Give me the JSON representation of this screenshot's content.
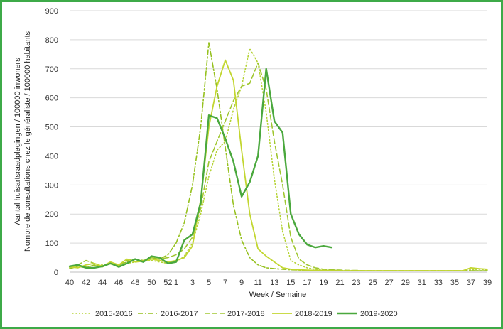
{
  "colors": {
    "frame": "#3daa48",
    "grid": "#d9d9d9",
    "axis": "#bfbfbf"
  },
  "chart_data": {
    "type": "line",
    "title": "",
    "xlabel": "Week / Semaine",
    "ylabel_lines": [
      "Aantal huisartsraadplegingen / 100000 inwoners",
      "Nombre de consultations chez le généraliste / 100000 habitants"
    ],
    "ylim": [
      0,
      900
    ],
    "yticks": [
      0,
      100,
      200,
      300,
      400,
      500,
      600,
      700,
      800,
      900
    ],
    "grid": "horizontal",
    "legend_position": "bottom",
    "weeks": [
      "40",
      "41",
      "42",
      "43",
      "44",
      "45",
      "46",
      "47",
      "48",
      "49",
      "50",
      "51",
      "52",
      "1",
      "2",
      "3",
      "4",
      "5",
      "6",
      "7",
      "8",
      "9",
      "10",
      "11",
      "12",
      "13",
      "14",
      "15",
      "16",
      "17",
      "18",
      "19",
      "20",
      "21",
      "22",
      "23",
      "24",
      "25",
      "26",
      "27",
      "28",
      "29",
      "30",
      "31",
      "32",
      "33",
      "34",
      "35",
      "36",
      "37",
      "38",
      "39"
    ],
    "xtick_labels": [
      "40",
      "42",
      "44",
      "46",
      "48",
      "50",
      "52",
      "1",
      "3",
      "5",
      "7",
      "9",
      "11",
      "13",
      "15",
      "17",
      "19",
      "21",
      "23",
      "25",
      "27",
      "29",
      "31",
      "33",
      "35",
      "37",
      "39"
    ],
    "series": [
      {
        "name": "2015-2016",
        "color": "#b5d334",
        "dash": "1.5,3",
        "width": 1.6,
        "values": [
          15,
          20,
          18,
          22,
          25,
          28,
          22,
          30,
          35,
          38,
          40,
          35,
          30,
          35,
          55,
          100,
          200,
          330,
          420,
          450,
          560,
          640,
          770,
          720,
          550,
          320,
          140,
          40,
          25,
          15,
          10,
          8,
          7,
          6,
          6,
          5,
          5,
          5,
          5,
          5,
          5,
          5,
          5,
          5,
          5,
          5,
          5,
          5,
          5,
          8,
          10,
          8
        ]
      },
      {
        "name": "2016-2017",
        "color": "#96c11f",
        "dash": "7,3,2,3",
        "width": 1.6,
        "values": [
          12,
          20,
          15,
          25,
          18,
          30,
          25,
          35,
          45,
          40,
          50,
          45,
          60,
          100,
          170,
          300,
          500,
          790,
          630,
          430,
          230,
          110,
          50,
          25,
          15,
          12,
          10,
          8,
          7,
          6,
          6,
          5,
          5,
          5,
          5,
          5,
          5,
          5,
          5,
          5,
          5,
          5,
          5,
          5,
          5,
          5,
          5,
          5,
          5,
          5,
          5,
          5
        ]
      },
      {
        "name": "2017-2018",
        "color": "#a0c730",
        "dash": "7,4",
        "width": 1.6,
        "values": [
          15,
          25,
          40,
          30,
          20,
          35,
          22,
          40,
          45,
          38,
          50,
          45,
          50,
          60,
          80,
          120,
          220,
          380,
          450,
          520,
          590,
          640,
          650,
          720,
          630,
          450,
          300,
          120,
          45,
          25,
          15,
          10,
          8,
          7,
          6,
          6,
          5,
          5,
          5,
          5,
          5,
          5,
          5,
          5,
          5,
          5,
          5,
          5,
          5,
          5,
          5,
          5
        ]
      },
      {
        "name": "2018-2019",
        "color": "#c2d630",
        "dash": "",
        "width": 1.8,
        "values": [
          18,
          15,
          25,
          30,
          20,
          35,
          25,
          45,
          35,
          38,
          45,
          40,
          35,
          40,
          50,
          90,
          250,
          500,
          640,
          730,
          660,
          420,
          200,
          80,
          55,
          35,
          15,
          10,
          8,
          7,
          6,
          6,
          5,
          5,
          5,
          5,
          5,
          5,
          5,
          5,
          5,
          5,
          5,
          5,
          5,
          5,
          5,
          5,
          5,
          15,
          12,
          10
        ]
      },
      {
        "name": "2019-2020",
        "color": "#4aa83d",
        "dash": "",
        "width": 2.4,
        "values": [
          20,
          25,
          15,
          15,
          20,
          30,
          18,
          30,
          45,
          35,
          55,
          50,
          30,
          35,
          110,
          130,
          240,
          540,
          530,
          460,
          380,
          260,
          310,
          400,
          700,
          520,
          480,
          200,
          130,
          95,
          85,
          90,
          85
        ]
      }
    ]
  }
}
